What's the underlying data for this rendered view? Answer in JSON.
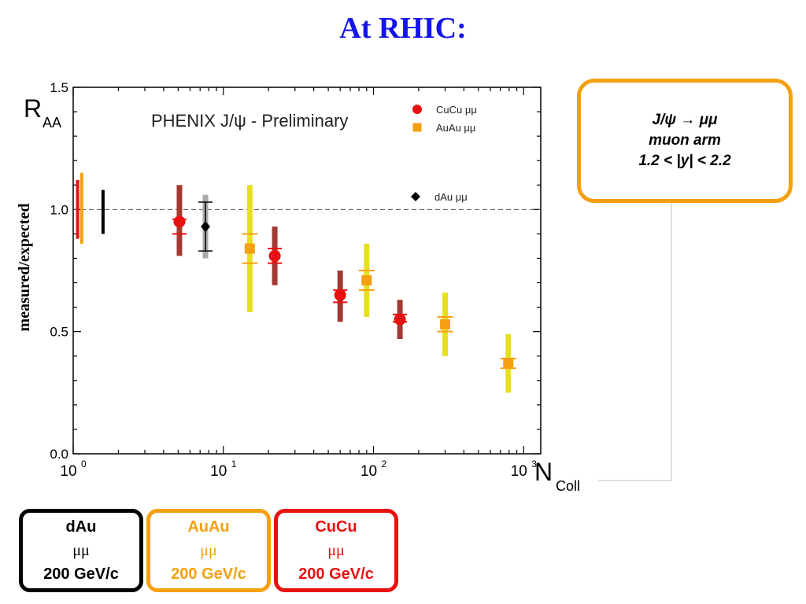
{
  "title": "At RHIC:",
  "info_box": {
    "line1": "J/ψ → μμ",
    "line2": "muon arm",
    "line3": "1.2 < |y| < 2.2"
  },
  "system_boxes": [
    {
      "name": "dAu",
      "line2": "μμ",
      "line3": "200 GeV/c",
      "color": "#000000"
    },
    {
      "name": "AuAu",
      "line2": "μμ",
      "line3": "200 GeV/c",
      "color": "#f5a011"
    },
    {
      "name": "CuCu",
      "line2": "μμ",
      "line3": "200 GeV/c",
      "color": "#e81010"
    }
  ],
  "chart_data": {
    "type": "scatter",
    "title": "PHENIX J/ψ - Preliminary",
    "ylabel": "R",
    "ylabel_sub": "AA",
    "ylabel_secondary": "measured/expected",
    "xlabel": "N",
    "xlabel_sub": "Coll",
    "x_scale": "log",
    "xlim": [
      1,
      1300
    ],
    "ylim": [
      0.0,
      1.5
    ],
    "y_ticks": [
      "0.0",
      "0.5",
      "1.0",
      "1.5"
    ],
    "x_ticks": [
      {
        "base": "10",
        "exp": "0"
      },
      {
        "base": "10",
        "exp": "1"
      },
      {
        "base": "10",
        "exp": "2"
      },
      {
        "base": "10",
        "exp": "3"
      }
    ],
    "reference_line": 1.0,
    "colors": {
      "CuCu_marker": "#e81010",
      "CuCu_syst": "#a33a32",
      "AuAu_marker": "#f5a011",
      "AuAu_syst": "#e6e020",
      "dAu_marker": "#000000",
      "dAu_syst": "#aaaaaa"
    },
    "legend": [
      {
        "label": "CuCu μμ",
        "marker": "circle",
        "color": "#e81010"
      },
      {
        "label": "AuAu μμ",
        "marker": "square",
        "color": "#f5a011"
      },
      {
        "label": "dAu μμ",
        "marker": "diamond",
        "color": "#000000"
      }
    ],
    "global_uncertainties": [
      {
        "system": "CuCu",
        "x": 1.07,
        "low": 0.88,
        "high": 1.12,
        "color": "#e81010"
      },
      {
        "system": "AuAu",
        "x": 1.14,
        "low": 0.86,
        "high": 1.15,
        "color": "#f5a011"
      },
      {
        "system": "dAu",
        "x": 1.58,
        "low": 0.9,
        "high": 1.08,
        "color": "#000000"
      }
    ],
    "series": [
      {
        "name": "CuCu μμ",
        "marker": "circle",
        "points": [
          {
            "x": 5.1,
            "y": 0.95,
            "stat": [
              0.9,
              0.96
            ],
            "syst": [
              0.81,
              1.1
            ]
          },
          {
            "x": 22,
            "y": 0.81,
            "stat": [
              0.78,
              0.84
            ],
            "syst": [
              0.69,
              0.93
            ]
          },
          {
            "x": 60,
            "y": 0.65,
            "stat": [
              0.62,
              0.67
            ],
            "syst": [
              0.54,
              0.75
            ]
          },
          {
            "x": 150,
            "y": 0.55,
            "stat": [
              0.54,
              0.57
            ],
            "syst": [
              0.47,
              0.63
            ]
          }
        ]
      },
      {
        "name": "AuAu μμ",
        "marker": "square",
        "points": [
          {
            "x": 15,
            "y": 0.84,
            "stat": [
              0.78,
              0.9
            ],
            "syst": [
              0.58,
              1.1
            ]
          },
          {
            "x": 90,
            "y": 0.71,
            "stat": [
              0.67,
              0.75
            ],
            "syst": [
              0.56,
              0.86
            ]
          },
          {
            "x": 300,
            "y": 0.53,
            "stat": [
              0.5,
              0.56
            ],
            "syst": [
              0.4,
              0.66
            ]
          },
          {
            "x": 790,
            "y": 0.37,
            "stat": [
              0.35,
              0.39
            ],
            "syst": [
              0.25,
              0.49
            ]
          }
        ]
      },
      {
        "name": "dAu μμ",
        "marker": "diamond",
        "points": [
          {
            "x": 7.6,
            "y": 0.93,
            "stat": [
              0.83,
              1.03
            ],
            "syst": [
              0.8,
              1.06
            ]
          }
        ]
      }
    ]
  }
}
